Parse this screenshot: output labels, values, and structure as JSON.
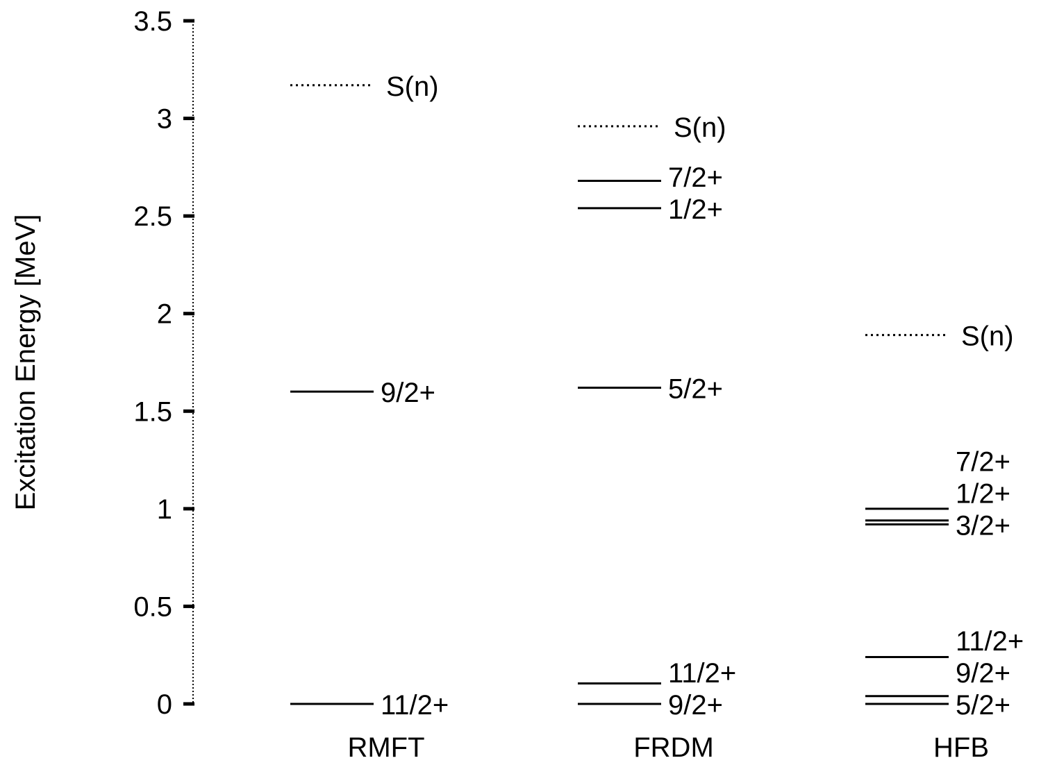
{
  "chart_data": {
    "type": "level-scheme",
    "ylabel": "Excitation Energy [MeV]",
    "ylim": [
      0,
      3.5
    ],
    "yticks": [
      {
        "value": 0,
        "label": "0"
      },
      {
        "value": 0.5,
        "label": "0.5"
      },
      {
        "value": 1,
        "label": "1"
      },
      {
        "value": 1.5,
        "label": "1.5"
      },
      {
        "value": 2,
        "label": "2"
      },
      {
        "value": 2.5,
        "label": "2.5"
      },
      {
        "value": 3,
        "label": "3"
      },
      {
        "value": 3.5,
        "label": "3.5"
      }
    ],
    "categories": [
      "RMFT",
      "FRDM",
      "HFB"
    ],
    "columns": [
      {
        "name": "RMFT",
        "levels": [
          {
            "energy": 0.0,
            "label": "11/2+",
            "style": "solid"
          },
          {
            "energy": 1.6,
            "label": "9/2+",
            "style": "solid"
          },
          {
            "energy": 3.17,
            "label": "S(n)",
            "style": "dotted"
          }
        ]
      },
      {
        "name": "FRDM",
        "levels": [
          {
            "energy": 0.0,
            "label": "9/2+",
            "style": "solid"
          },
          {
            "energy": 0.105,
            "label": "11/2+",
            "style": "solid"
          },
          {
            "energy": 1.62,
            "label": "5/2+",
            "style": "solid"
          },
          {
            "energy": 2.54,
            "label": "1/2+",
            "style": "solid"
          },
          {
            "energy": 2.68,
            "label": "7/2+",
            "style": "solid"
          },
          {
            "energy": 2.96,
            "label": "S(n)",
            "style": "dotted"
          }
        ]
      },
      {
        "name": "HFB",
        "levels": [
          {
            "energy": 0.0,
            "label": "5/2+",
            "style": "solid"
          },
          {
            "energy": 0.04,
            "label": "9/2+",
            "style": "solid"
          },
          {
            "energy": 0.24,
            "label": "11/2+",
            "style": "solid"
          },
          {
            "energy": 0.92,
            "label": "3/2+",
            "style": "solid"
          },
          {
            "energy": 0.94,
            "label": "1/2+",
            "style": "solid"
          },
          {
            "energy": 1.0,
            "label": "7/2+",
            "style": "solid"
          },
          {
            "energy": 1.89,
            "label": "S(n)",
            "style": "dotted"
          }
        ]
      }
    ],
    "grid": false,
    "legend": "none",
    "colors": {
      "line": "#000000",
      "text": "#000000",
      "background": "#ffffff"
    }
  }
}
